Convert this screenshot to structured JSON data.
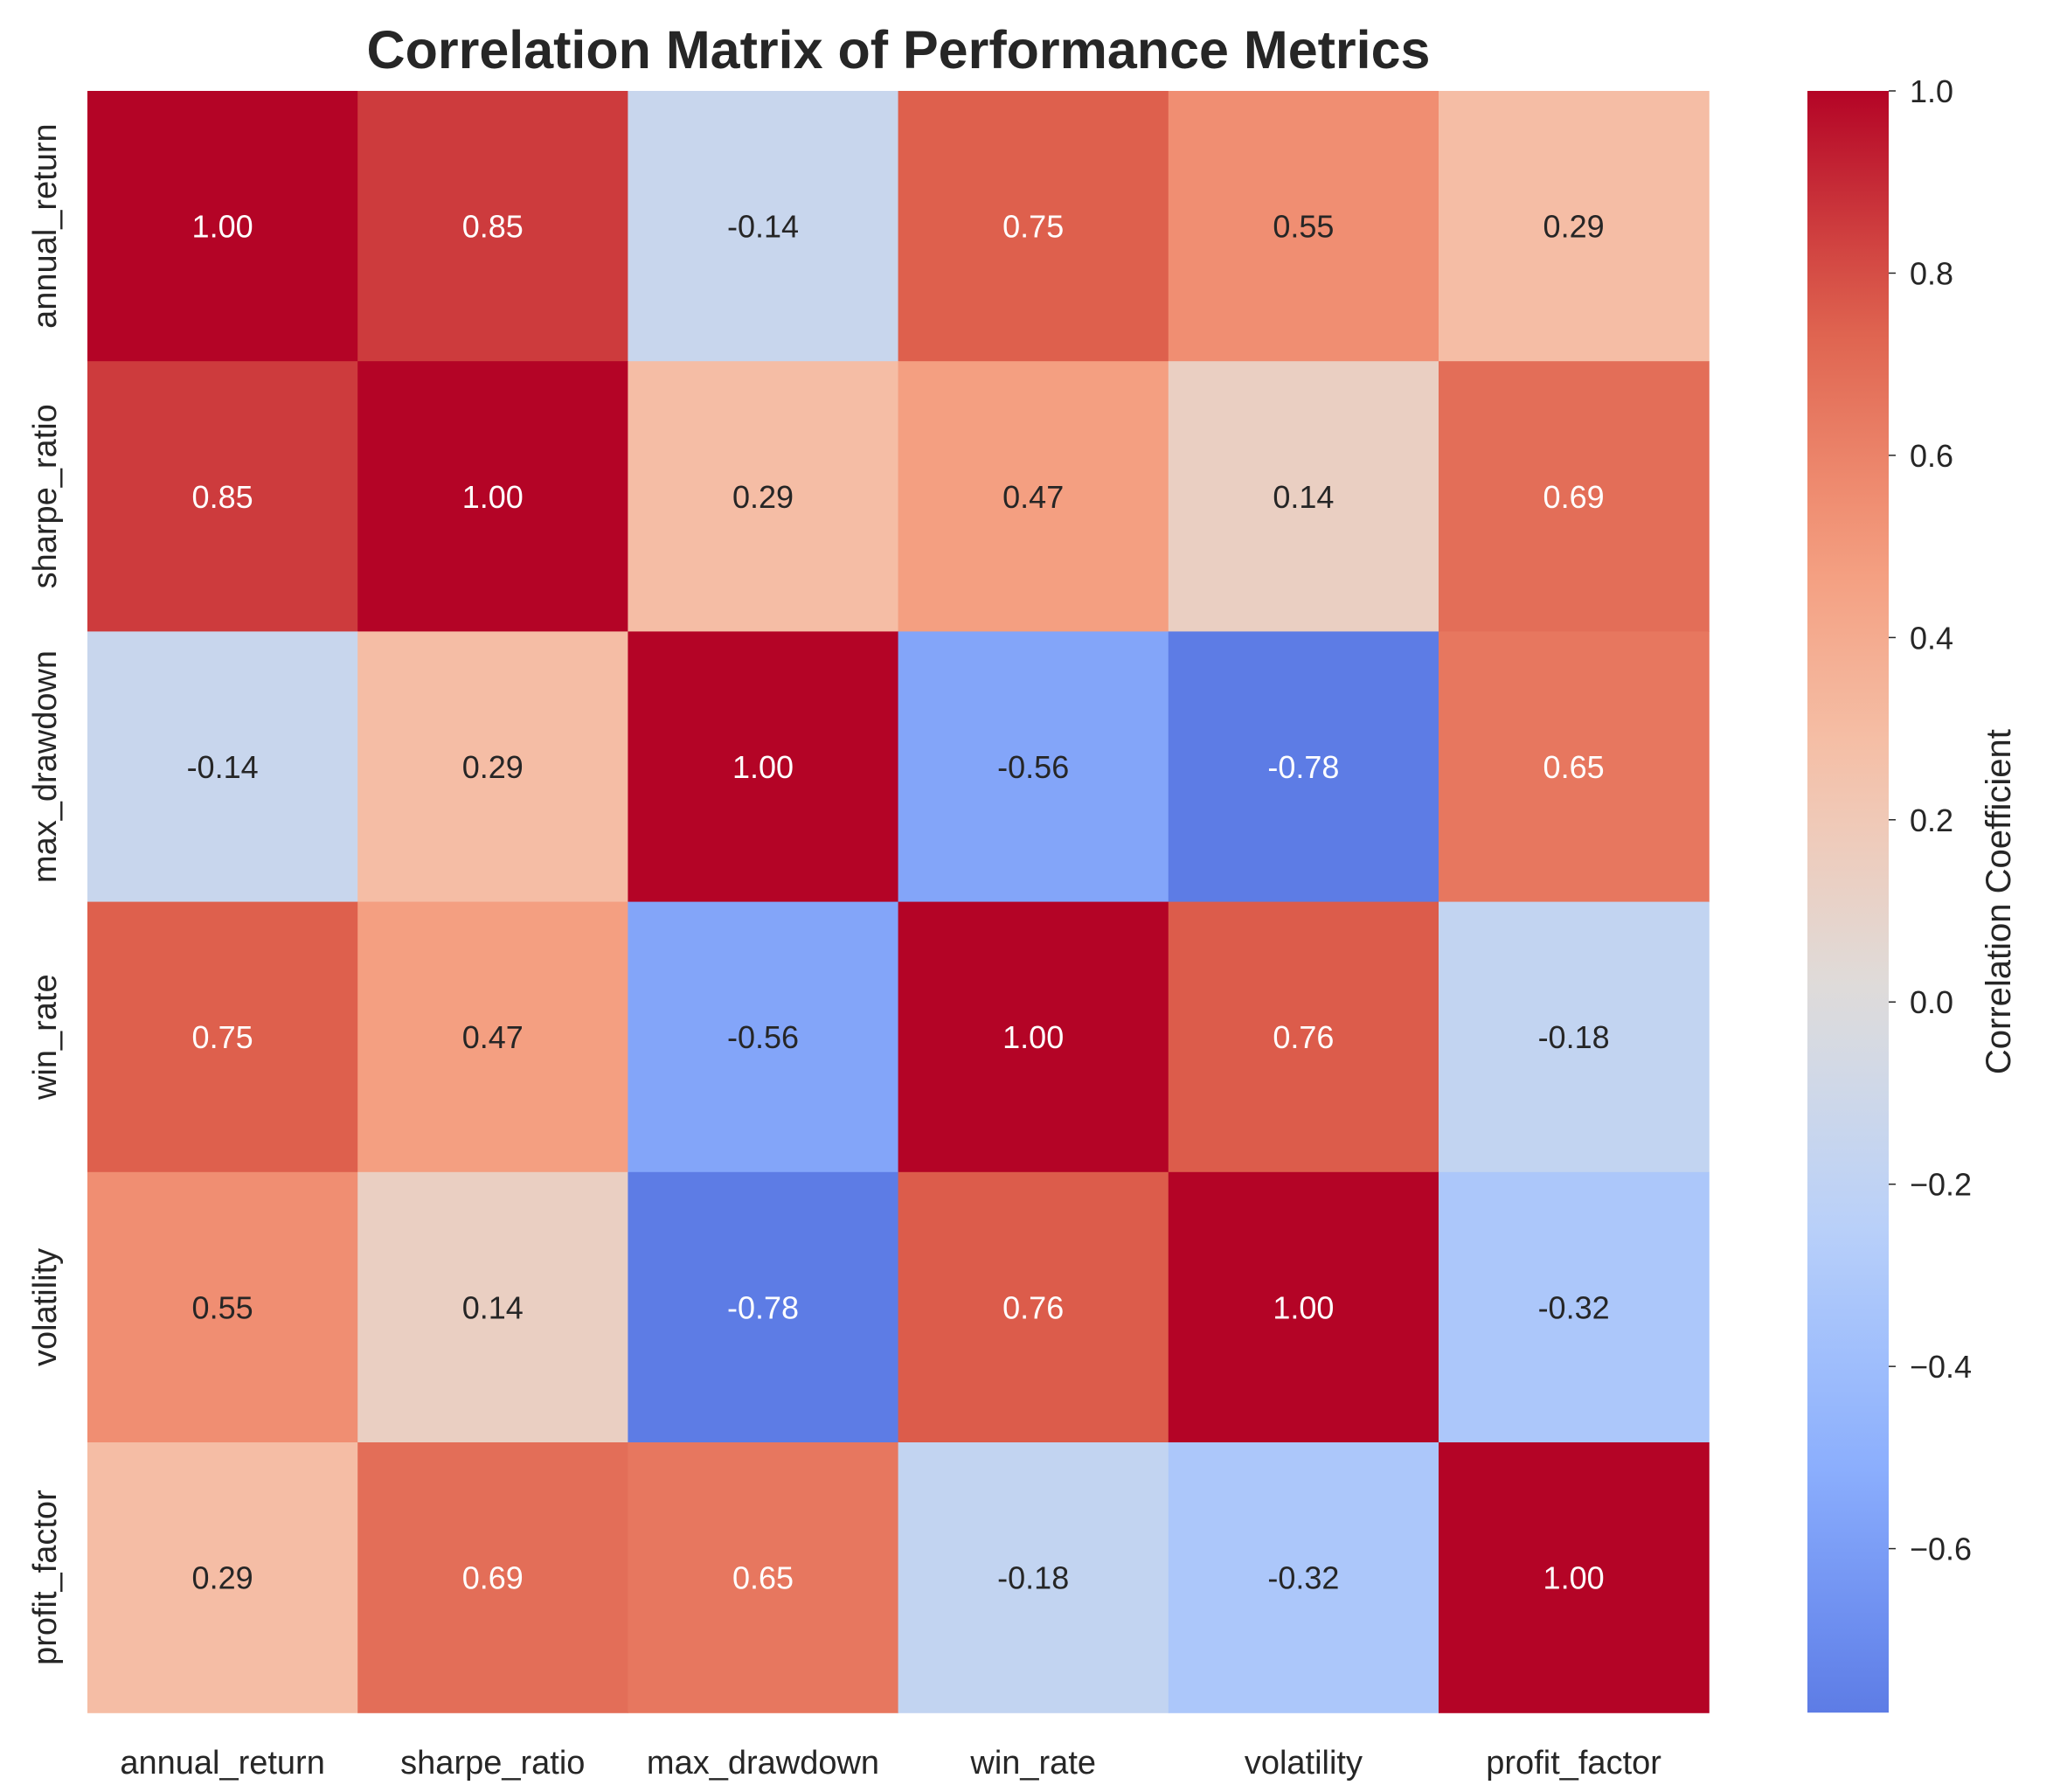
{
  "chart_data": {
    "type": "heatmap",
    "title": "Correlation Matrix of Performance Metrics",
    "xlabel": "",
    "ylabel": "",
    "categories": [
      "annual_return",
      "sharpe_ratio",
      "max_drawdown",
      "win_rate",
      "volatility",
      "profit_factor"
    ],
    "matrix": [
      [
        1.0,
        0.85,
        -0.14,
        0.75,
        0.55,
        0.29
      ],
      [
        0.85,
        1.0,
        0.29,
        0.47,
        0.14,
        0.69
      ],
      [
        -0.14,
        0.29,
        1.0,
        -0.56,
        -0.78,
        0.65
      ],
      [
        0.75,
        0.47,
        -0.56,
        1.0,
        0.76,
        -0.18
      ],
      [
        0.55,
        0.14,
        -0.78,
        0.76,
        1.0,
        -0.32
      ],
      [
        0.29,
        0.69,
        0.65,
        -0.18,
        -0.32,
        1.0
      ]
    ],
    "annotation_format": "0.00",
    "colormap": "coolwarm",
    "colormap_center": 0,
    "vmin": -0.78,
    "vmax": 1.0,
    "colorbar": {
      "label": "Correlation Coefficient",
      "ticks": [
        1.0,
        0.8,
        0.6,
        0.4,
        0.2,
        0.0,
        -0.2,
        -0.4,
        -0.6
      ],
      "tick_labels": [
        "1.0",
        "0.8",
        "0.6",
        "0.4",
        "0.2",
        "0.0",
        "−0.2",
        "−0.4",
        "−0.6"
      ],
      "placement": "right"
    },
    "grid": false
  }
}
